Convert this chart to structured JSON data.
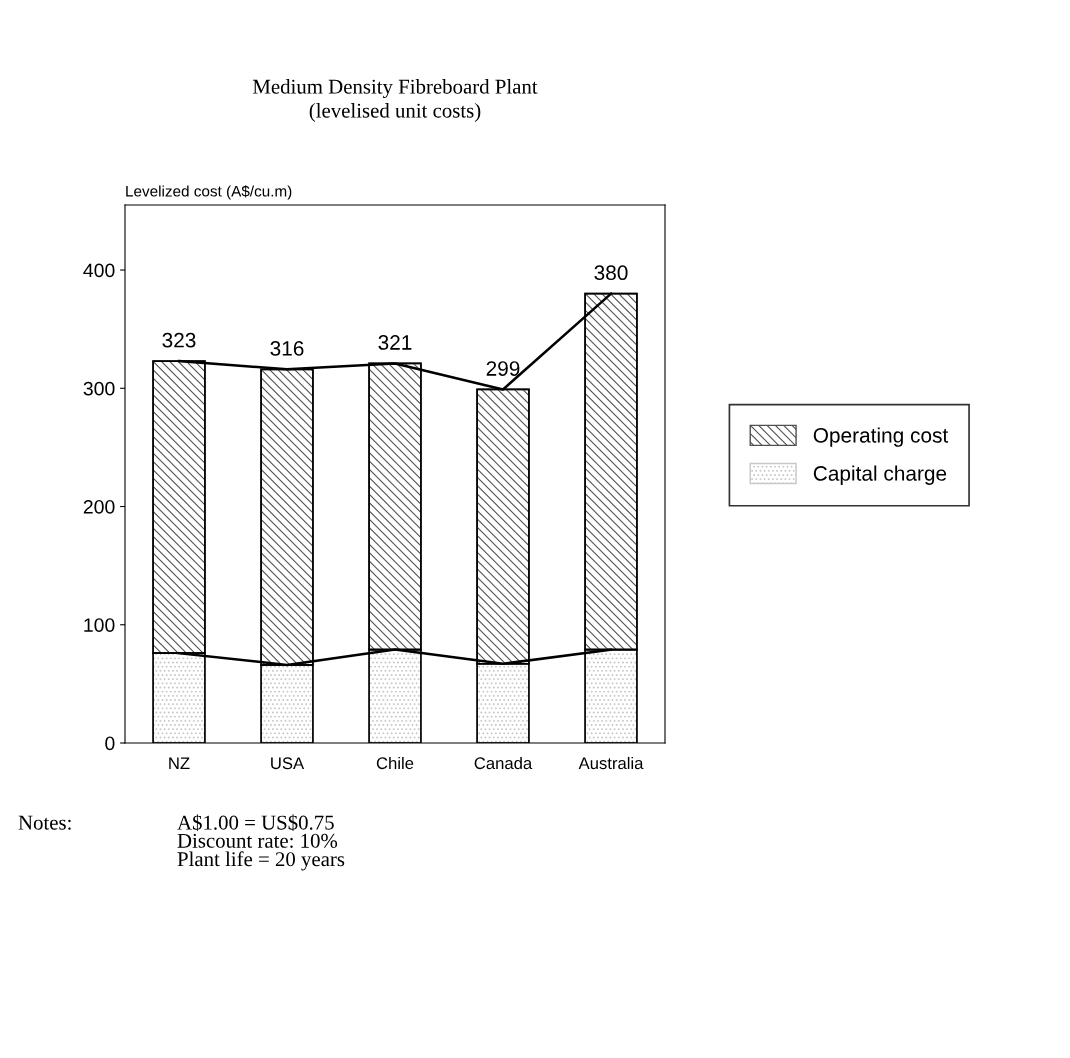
{
  "chart_data": {
    "type": "bar",
    "title": "Medium Density Fibreboard Plant",
    "subtitle": "(levelised unit costs)",
    "ylabel": "Levelized cost (A$/cu.m)",
    "categories": [
      "NZ",
      "USA",
      "Chile",
      "Canada",
      "Australia"
    ],
    "stacked": true,
    "series": [
      {
        "name": "Capital charge",
        "color": "#c8c8c8",
        "values": [
          76,
          66,
          79,
          67,
          79
        ]
      },
      {
        "name": "Operating cost",
        "color": "#505050",
        "values": [
          247,
          250,
          242,
          232,
          301
        ]
      },
      {
        "type": "line",
        "color": "#000000",
        "values": [
          323,
          316,
          321,
          299,
          380
        ]
      },
      {
        "type": "line",
        "color": "#000000",
        "values": [
          76,
          66,
          79,
          67,
          79
        ]
      }
    ],
    "totals": [
      "323",
      "316",
      "321",
      "299",
      "380"
    ],
    "ylim": [
      0,
      455
    ],
    "yticks": [
      0,
      100,
      200,
      300,
      400
    ],
    "grid": false,
    "legend": "right",
    "annotations": [
      "Notes:",
      "A$1.00 = US$0.75\nDiscount rate: 10%\nPlant life = 20 years"
    ]
  }
}
